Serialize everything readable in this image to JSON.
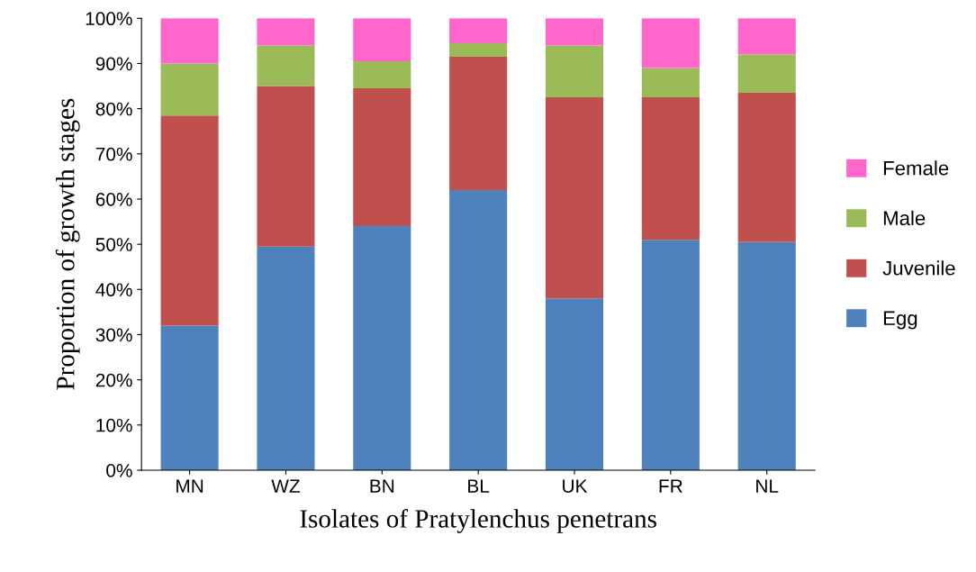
{
  "chart_data": {
    "type": "bar",
    "stacked": true,
    "xlabel": "Isolates of Pratylenchus penetrans",
    "ylabel": "Proportion of growth stages",
    "categories": [
      "MN",
      "WZ",
      "BN",
      "BL",
      "UK",
      "FR",
      "NL"
    ],
    "series": [
      {
        "name": "Egg",
        "color": "#4f81bd",
        "values": [
          32,
          49.5,
          54,
          62,
          38,
          51,
          50.5
        ]
      },
      {
        "name": "Juvenile",
        "color": "#c0504d",
        "values": [
          46.5,
          35.5,
          30.5,
          29.5,
          44.5,
          31.5,
          33
        ]
      },
      {
        "name": "Male",
        "color": "#9bbb59",
        "values": [
          11.5,
          9,
          6,
          3,
          11.5,
          6.5,
          8.5
        ]
      },
      {
        "name": "Female",
        "color": "#ff66cc",
        "values": [
          10,
          6,
          9.5,
          5.5,
          6,
          11,
          8
        ]
      }
    ],
    "ylim": [
      0,
      100
    ],
    "yticks": [
      {
        "value": 0,
        "label": "0%"
      },
      {
        "value": 10,
        "label": "10%"
      },
      {
        "value": 20,
        "label": "20%"
      },
      {
        "value": 30,
        "label": "30%"
      },
      {
        "value": 40,
        "label": "40%"
      },
      {
        "value": 50,
        "label": "50%"
      },
      {
        "value": 60,
        "label": "60%"
      },
      {
        "value": 70,
        "label": "70%"
      },
      {
        "value": 80,
        "label": "80%"
      },
      {
        "value": 90,
        "label": "90%"
      },
      {
        "value": 100,
        "label": "100%"
      }
    ],
    "grid": false,
    "legend": "right"
  }
}
